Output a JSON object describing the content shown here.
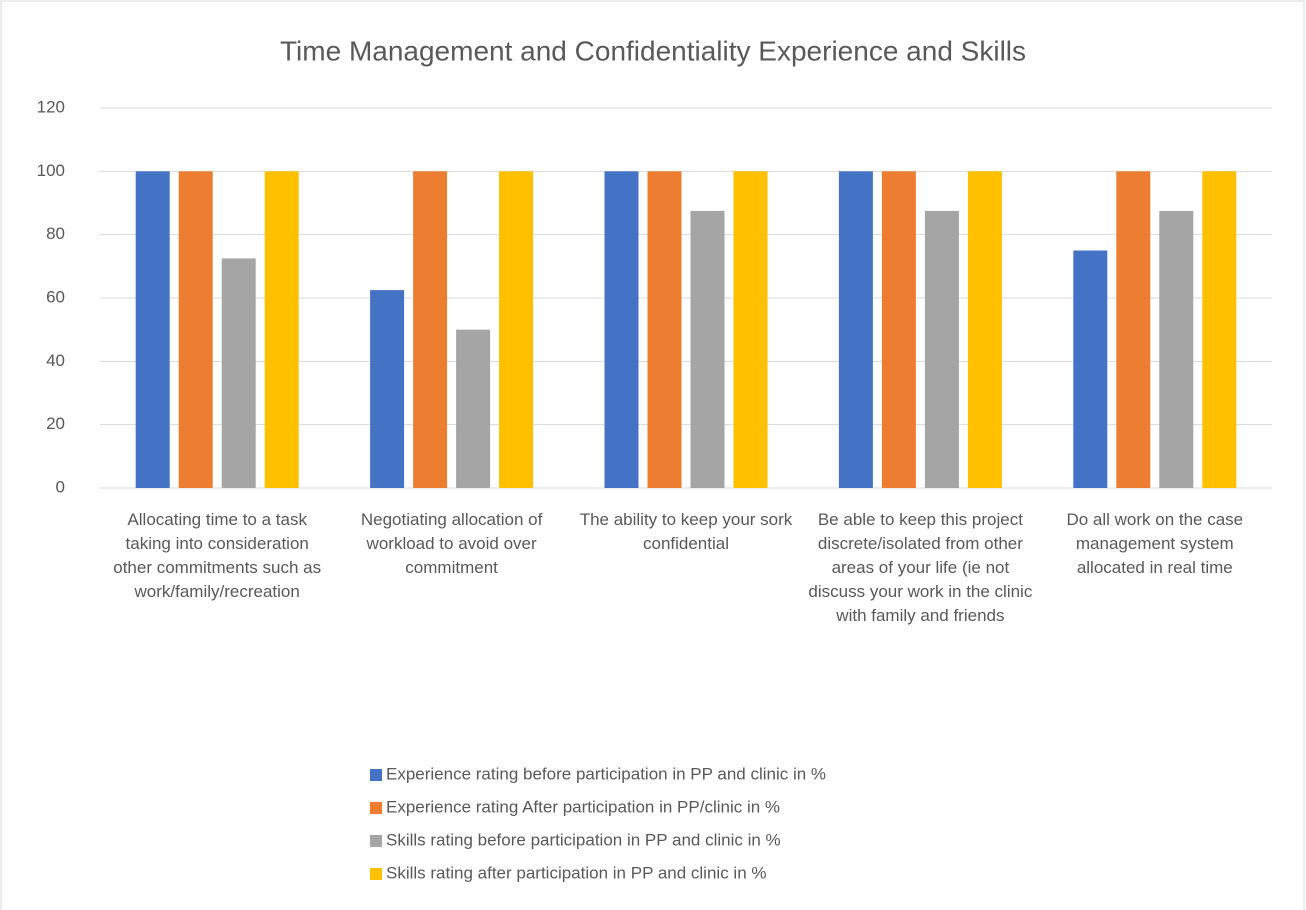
{
  "chart_data": {
    "type": "bar",
    "title": "Time Management and Confidentiality Experience and Skills",
    "categories": [
      "Allocating time to a task taking into consideration other commitments such as work/family/recreation",
      "Negotiating allocation of workload to avoid over commitment",
      "The ability to keep your sork confidential",
      "Be able to keep this project discrete/isolated from other areas of your life (ie not discuss your work in the clinic with family and friends",
      "Do all work on the case management system allocated in real time"
    ],
    "series": [
      {
        "name": "Experience rating before participation in PP and clinic in %",
        "color": "#4472c4",
        "values": [
          100,
          62.5,
          100,
          100,
          75
        ]
      },
      {
        "name": "Experience rating After participation in PP/clinic in %",
        "color": "#ed7d31",
        "values": [
          100,
          100,
          100,
          100,
          100
        ]
      },
      {
        "name": "Skills rating before participation in PP and clinic in %",
        "color": "#a5a5a5",
        "values": [
          72.5,
          50,
          87.5,
          87.5,
          87.5
        ]
      },
      {
        "name": "Skills rating after participation in PP and clinic in %",
        "color": "#ffc000",
        "values": [
          100,
          100,
          100,
          100,
          100
        ]
      }
    ],
    "ylim": [
      0,
      120
    ],
    "yticks": [
      0,
      20,
      40,
      60,
      80,
      100,
      120
    ],
    "grid": true,
    "legend": "bottom"
  }
}
